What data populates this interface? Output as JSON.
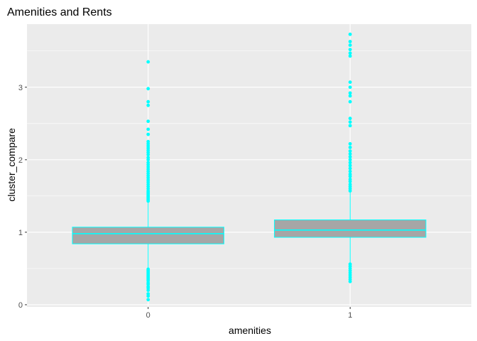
{
  "chart_data": {
    "type": "boxplot",
    "title": "Amenities and Rents",
    "xlabel": "amenities",
    "ylabel": "cluster_compare",
    "categories": [
      "0",
      "1"
    ],
    "ylim": [
      -0.03,
      3.87
    ],
    "yticks": [
      0,
      1,
      2,
      3
    ],
    "grid": true,
    "boxes": [
      {
        "category": "0",
        "q1": 0.84,
        "median": 0.98,
        "q3": 1.07,
        "whisker_low": 0.5,
        "whisker_high": 1.42,
        "outliers": [
          0.07,
          0.12,
          0.15,
          0.2,
          0.23,
          0.25,
          0.28,
          0.3,
          0.33,
          0.35,
          0.37,
          0.39,
          0.41,
          0.43,
          0.45,
          0.47,
          0.49,
          1.43,
          1.45,
          1.47,
          1.49,
          1.51,
          1.53,
          1.55,
          1.57,
          1.6,
          1.63,
          1.66,
          1.69,
          1.72,
          1.75,
          1.78,
          1.81,
          1.84,
          1.87,
          1.9,
          1.93,
          1.96,
          2.0,
          2.03,
          2.07,
          2.1,
          2.13,
          2.16,
          2.19,
          2.22,
          2.25,
          2.35,
          2.42,
          2.53,
          2.75,
          2.8,
          2.98,
          3.35
        ]
      },
      {
        "category": "1",
        "q1": 0.93,
        "median": 1.03,
        "q3": 1.17,
        "whisker_low": 0.57,
        "whisker_high": 1.55,
        "outliers": [
          0.32,
          0.35,
          0.38,
          0.41,
          0.44,
          0.47,
          0.5,
          0.53,
          0.56,
          1.57,
          1.6,
          1.63,
          1.66,
          1.7,
          1.73,
          1.77,
          1.8,
          1.84,
          1.88,
          1.92,
          1.96,
          2.0,
          2.04,
          2.08,
          2.12,
          2.17,
          2.22,
          2.47,
          2.52,
          2.57,
          2.8,
          2.88,
          2.92,
          3.0,
          3.07,
          3.43,
          3.47,
          3.52,
          3.58,
          3.63,
          3.73
        ]
      }
    ],
    "colors": {
      "box_fill": "#a6a6a6",
      "box_outline": "#00ffff",
      "outlier": "#00ffff",
      "panel_bg": "#ebebeb",
      "grid": "#ffffff"
    }
  }
}
